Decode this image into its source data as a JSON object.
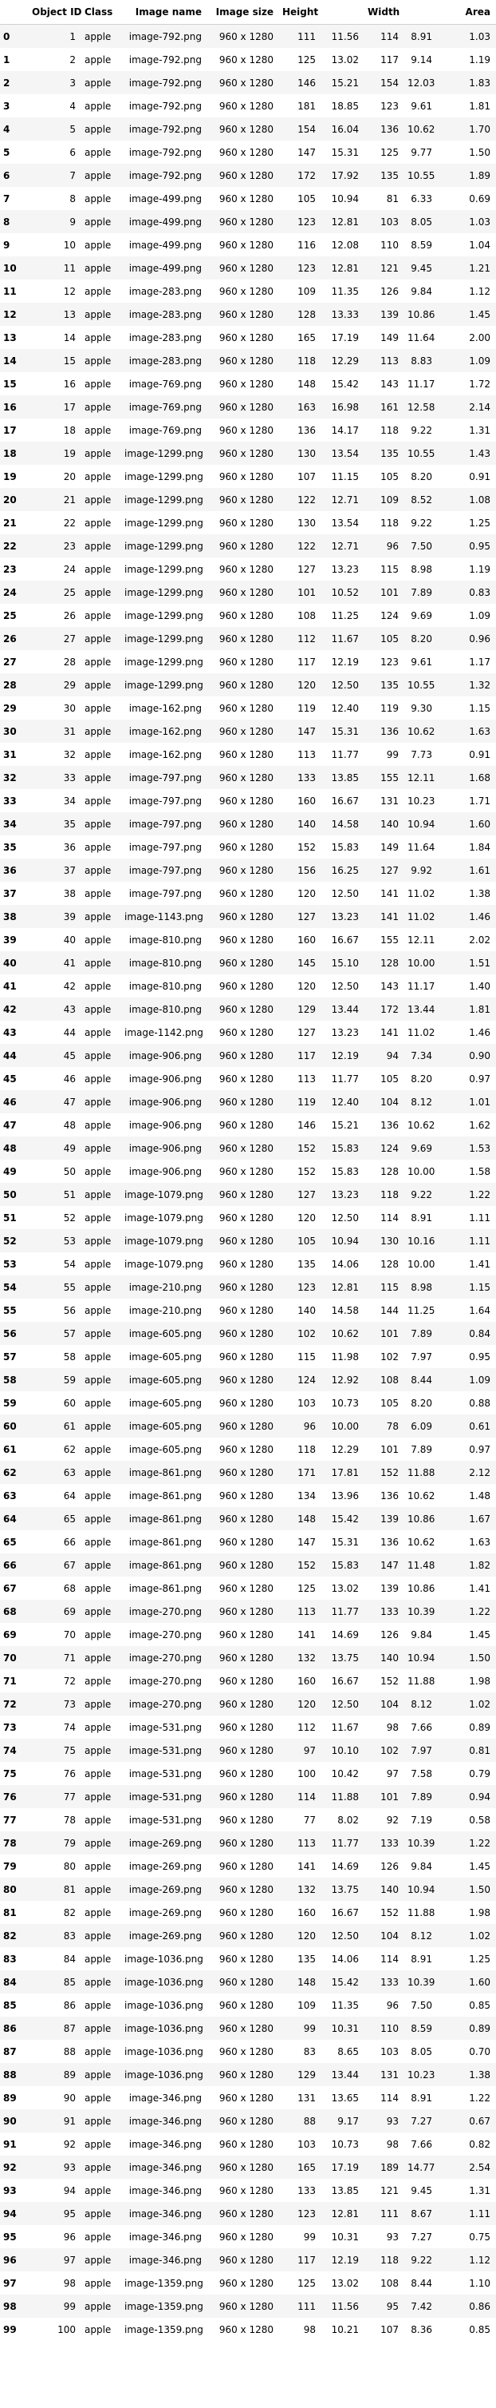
{
  "table": {
    "columns": [
      "",
      "Object ID",
      "Class",
      "Image name",
      "Image size",
      "Height",
      "Width",
      "Area"
    ],
    "rows": [
      [
        "0",
        "1",
        "apple",
        "image-792.png",
        "960 x 1280",
        "111",
        "11.56",
        "114",
        "8.91",
        "1.03"
      ],
      [
        "1",
        "2",
        "apple",
        "image-792.png",
        "960 x 1280",
        "125",
        "13.02",
        "117",
        "9.14",
        "1.19"
      ],
      [
        "2",
        "3",
        "apple",
        "image-792.png",
        "960 x 1280",
        "146",
        "15.21",
        "154",
        "12.03",
        "1.83"
      ],
      [
        "3",
        "4",
        "apple",
        "image-792.png",
        "960 x 1280",
        "181",
        "18.85",
        "123",
        "9.61",
        "1.81"
      ],
      [
        "4",
        "5",
        "apple",
        "image-792.png",
        "960 x 1280",
        "154",
        "16.04",
        "136",
        "10.62",
        "1.70"
      ],
      [
        "5",
        "6",
        "apple",
        "image-792.png",
        "960 x 1280",
        "147",
        "15.31",
        "125",
        "9.77",
        "1.50"
      ],
      [
        "6",
        "7",
        "apple",
        "image-792.png",
        "960 x 1280",
        "172",
        "17.92",
        "135",
        "10.55",
        "1.89"
      ],
      [
        "7",
        "8",
        "apple",
        "image-499.png",
        "960 x 1280",
        "105",
        "10.94",
        "81",
        "6.33",
        "0.69"
      ],
      [
        "8",
        "9",
        "apple",
        "image-499.png",
        "960 x 1280",
        "123",
        "12.81",
        "103",
        "8.05",
        "1.03"
      ],
      [
        "9",
        "10",
        "apple",
        "image-499.png",
        "960 x 1280",
        "116",
        "12.08",
        "110",
        "8.59",
        "1.04"
      ],
      [
        "10",
        "11",
        "apple",
        "image-499.png",
        "960 x 1280",
        "123",
        "12.81",
        "121",
        "9.45",
        "1.21"
      ],
      [
        "11",
        "12",
        "apple",
        "image-283.png",
        "960 x 1280",
        "109",
        "11.35",
        "126",
        "9.84",
        "1.12"
      ],
      [
        "12",
        "13",
        "apple",
        "image-283.png",
        "960 x 1280",
        "128",
        "13.33",
        "139",
        "10.86",
        "1.45"
      ],
      [
        "13",
        "14",
        "apple",
        "image-283.png",
        "960 x 1280",
        "165",
        "17.19",
        "149",
        "11.64",
        "2.00"
      ],
      [
        "14",
        "15",
        "apple",
        "image-283.png",
        "960 x 1280",
        "118",
        "12.29",
        "113",
        "8.83",
        "1.09"
      ],
      [
        "15",
        "16",
        "apple",
        "image-769.png",
        "960 x 1280",
        "148",
        "15.42",
        "143",
        "11.17",
        "1.72"
      ],
      [
        "16",
        "17",
        "apple",
        "image-769.png",
        "960 x 1280",
        "163",
        "16.98",
        "161",
        "12.58",
        "2.14"
      ],
      [
        "17",
        "18",
        "apple",
        "image-769.png",
        "960 x 1280",
        "136",
        "14.17",
        "118",
        "9.22",
        "1.31"
      ],
      [
        "18",
        "19",
        "apple",
        "image-1299.png",
        "960 x 1280",
        "130",
        "13.54",
        "135",
        "10.55",
        "1.43"
      ],
      [
        "19",
        "20",
        "apple",
        "image-1299.png",
        "960 x 1280",
        "107",
        "11.15",
        "105",
        "8.20",
        "0.91"
      ],
      [
        "20",
        "21",
        "apple",
        "image-1299.png",
        "960 x 1280",
        "122",
        "12.71",
        "109",
        "8.52",
        "1.08"
      ],
      [
        "21",
        "22",
        "apple",
        "image-1299.png",
        "960 x 1280",
        "130",
        "13.54",
        "118",
        "9.22",
        "1.25"
      ],
      [
        "22",
        "23",
        "apple",
        "image-1299.png",
        "960 x 1280",
        "122",
        "12.71",
        "96",
        "7.50",
        "0.95"
      ],
      [
        "23",
        "24",
        "apple",
        "image-1299.png",
        "960 x 1280",
        "127",
        "13.23",
        "115",
        "8.98",
        "1.19"
      ],
      [
        "24",
        "25",
        "apple",
        "image-1299.png",
        "960 x 1280",
        "101",
        "10.52",
        "101",
        "7.89",
        "0.83"
      ],
      [
        "25",
        "26",
        "apple",
        "image-1299.png",
        "960 x 1280",
        "108",
        "11.25",
        "124",
        "9.69",
        "1.09"
      ],
      [
        "26",
        "27",
        "apple",
        "image-1299.png",
        "960 x 1280",
        "112",
        "11.67",
        "105",
        "8.20",
        "0.96"
      ],
      [
        "27",
        "28",
        "apple",
        "image-1299.png",
        "960 x 1280",
        "117",
        "12.19",
        "123",
        "9.61",
        "1.17"
      ],
      [
        "28",
        "29",
        "apple",
        "image-1299.png",
        "960 x 1280",
        "120",
        "12.50",
        "135",
        "10.55",
        "1.32"
      ],
      [
        "29",
        "30",
        "apple",
        "image-162.png",
        "960 x 1280",
        "119",
        "12.40",
        "119",
        "9.30",
        "1.15"
      ],
      [
        "30",
        "31",
        "apple",
        "image-162.png",
        "960 x 1280",
        "147",
        "15.31",
        "136",
        "10.62",
        "1.63"
      ],
      [
        "31",
        "32",
        "apple",
        "image-162.png",
        "960 x 1280",
        "113",
        "11.77",
        "99",
        "7.73",
        "0.91"
      ],
      [
        "32",
        "33",
        "apple",
        "image-797.png",
        "960 x 1280",
        "133",
        "13.85",
        "155",
        "12.11",
        "1.68"
      ],
      [
        "33",
        "34",
        "apple",
        "image-797.png",
        "960 x 1280",
        "160",
        "16.67",
        "131",
        "10.23",
        "1.71"
      ],
      [
        "34",
        "35",
        "apple",
        "image-797.png",
        "960 x 1280",
        "140",
        "14.58",
        "140",
        "10.94",
        "1.60"
      ],
      [
        "35",
        "36",
        "apple",
        "image-797.png",
        "960 x 1280",
        "152",
        "15.83",
        "149",
        "11.64",
        "1.84"
      ],
      [
        "36",
        "37",
        "apple",
        "image-797.png",
        "960 x 1280",
        "156",
        "16.25",
        "127",
        "9.92",
        "1.61"
      ],
      [
        "37",
        "38",
        "apple",
        "image-797.png",
        "960 x 1280",
        "120",
        "12.50",
        "141",
        "11.02",
        "1.38"
      ],
      [
        "38",
        "39",
        "apple",
        "image-1143.png",
        "960 x 1280",
        "127",
        "13.23",
        "141",
        "11.02",
        "1.46"
      ],
      [
        "39",
        "40",
        "apple",
        "image-810.png",
        "960 x 1280",
        "160",
        "16.67",
        "155",
        "12.11",
        "2.02"
      ],
      [
        "40",
        "41",
        "apple",
        "image-810.png",
        "960 x 1280",
        "145",
        "15.10",
        "128",
        "10.00",
        "1.51"
      ],
      [
        "41",
        "42",
        "apple",
        "image-810.png",
        "960 x 1280",
        "120",
        "12.50",
        "143",
        "11.17",
        "1.40"
      ],
      [
        "42",
        "43",
        "apple",
        "image-810.png",
        "960 x 1280",
        "129",
        "13.44",
        "172",
        "13.44",
        "1.81"
      ],
      [
        "43",
        "44",
        "apple",
        "image-1142.png",
        "960 x 1280",
        "127",
        "13.23",
        "141",
        "11.02",
        "1.46"
      ],
      [
        "44",
        "45",
        "apple",
        "image-906.png",
        "960 x 1280",
        "117",
        "12.19",
        "94",
        "7.34",
        "0.90"
      ],
      [
        "45",
        "46",
        "apple",
        "image-906.png",
        "960 x 1280",
        "113",
        "11.77",
        "105",
        "8.20",
        "0.97"
      ],
      [
        "46",
        "47",
        "apple",
        "image-906.png",
        "960 x 1280",
        "119",
        "12.40",
        "104",
        "8.12",
        "1.01"
      ],
      [
        "47",
        "48",
        "apple",
        "image-906.png",
        "960 x 1280",
        "146",
        "15.21",
        "136",
        "10.62",
        "1.62"
      ],
      [
        "48",
        "49",
        "apple",
        "image-906.png",
        "960 x 1280",
        "152",
        "15.83",
        "124",
        "9.69",
        "1.53"
      ],
      [
        "49",
        "50",
        "apple",
        "image-906.png",
        "960 x 1280",
        "152",
        "15.83",
        "128",
        "10.00",
        "1.58"
      ],
      [
        "50",
        "51",
        "apple",
        "image-1079.png",
        "960 x 1280",
        "127",
        "13.23",
        "118",
        "9.22",
        "1.22"
      ],
      [
        "51",
        "52",
        "apple",
        "image-1079.png",
        "960 x 1280",
        "120",
        "12.50",
        "114",
        "8.91",
        "1.11"
      ],
      [
        "52",
        "53",
        "apple",
        "image-1079.png",
        "960 x 1280",
        "105",
        "10.94",
        "130",
        "10.16",
        "1.11"
      ],
      [
        "53",
        "54",
        "apple",
        "image-1079.png",
        "960 x 1280",
        "135",
        "14.06",
        "128",
        "10.00",
        "1.41"
      ],
      [
        "54",
        "55",
        "apple",
        "image-210.png",
        "960 x 1280",
        "123",
        "12.81",
        "115",
        "8.98",
        "1.15"
      ],
      [
        "55",
        "56",
        "apple",
        "image-210.png",
        "960 x 1280",
        "140",
        "14.58",
        "144",
        "11.25",
        "1.64"
      ],
      [
        "56",
        "57",
        "apple",
        "image-605.png",
        "960 x 1280",
        "102",
        "10.62",
        "101",
        "7.89",
        "0.84"
      ],
      [
        "57",
        "58",
        "apple",
        "image-605.png",
        "960 x 1280",
        "115",
        "11.98",
        "102",
        "7.97",
        "0.95"
      ],
      [
        "58",
        "59",
        "apple",
        "image-605.png",
        "960 x 1280",
        "124",
        "12.92",
        "108",
        "8.44",
        "1.09"
      ],
      [
        "59",
        "60",
        "apple",
        "image-605.png",
        "960 x 1280",
        "103",
        "10.73",
        "105",
        "8.20",
        "0.88"
      ],
      [
        "60",
        "61",
        "apple",
        "image-605.png",
        "960 x 1280",
        "96",
        "10.00",
        "78",
        "6.09",
        "0.61"
      ],
      [
        "61",
        "62",
        "apple",
        "image-605.png",
        "960 x 1280",
        "118",
        "12.29",
        "101",
        "7.89",
        "0.97"
      ],
      [
        "62",
        "63",
        "apple",
        "image-861.png",
        "960 x 1280",
        "171",
        "17.81",
        "152",
        "11.88",
        "2.12"
      ],
      [
        "63",
        "64",
        "apple",
        "image-861.png",
        "960 x 1280",
        "134",
        "13.96",
        "136",
        "10.62",
        "1.48"
      ],
      [
        "64",
        "65",
        "apple",
        "image-861.png",
        "960 x 1280",
        "148",
        "15.42",
        "139",
        "10.86",
        "1.67"
      ],
      [
        "65",
        "66",
        "apple",
        "image-861.png",
        "960 x 1280",
        "147",
        "15.31",
        "136",
        "10.62",
        "1.63"
      ],
      [
        "66",
        "67",
        "apple",
        "image-861.png",
        "960 x 1280",
        "152",
        "15.83",
        "147",
        "11.48",
        "1.82"
      ],
      [
        "67",
        "68",
        "apple",
        "image-861.png",
        "960 x 1280",
        "125",
        "13.02",
        "139",
        "10.86",
        "1.41"
      ],
      [
        "68",
        "69",
        "apple",
        "image-270.png",
        "960 x 1280",
        "113",
        "11.77",
        "133",
        "10.39",
        "1.22"
      ],
      [
        "69",
        "70",
        "apple",
        "image-270.png",
        "960 x 1280",
        "141",
        "14.69",
        "126",
        "9.84",
        "1.45"
      ],
      [
        "70",
        "71",
        "apple",
        "image-270.png",
        "960 x 1280",
        "132",
        "13.75",
        "140",
        "10.94",
        "1.50"
      ],
      [
        "71",
        "72",
        "apple",
        "image-270.png",
        "960 x 1280",
        "160",
        "16.67",
        "152",
        "11.88",
        "1.98"
      ],
      [
        "72",
        "73",
        "apple",
        "image-270.png",
        "960 x 1280",
        "120",
        "12.50",
        "104",
        "8.12",
        "1.02"
      ],
      [
        "73",
        "74",
        "apple",
        "image-531.png",
        "960 x 1280",
        "112",
        "11.67",
        "98",
        "7.66",
        "0.89"
      ],
      [
        "74",
        "75",
        "apple",
        "image-531.png",
        "960 x 1280",
        "97",
        "10.10",
        "102",
        "7.97",
        "0.81"
      ],
      [
        "75",
        "76",
        "apple",
        "image-531.png",
        "960 x 1280",
        "100",
        "10.42",
        "97",
        "7.58",
        "0.79"
      ],
      [
        "76",
        "77",
        "apple",
        "image-531.png",
        "960 x 1280",
        "114",
        "11.88",
        "101",
        "7.89",
        "0.94"
      ],
      [
        "77",
        "78",
        "apple",
        "image-531.png",
        "960 x 1280",
        "77",
        "8.02",
        "92",
        "7.19",
        "0.58"
      ],
      [
        "78",
        "79",
        "apple",
        "image-269.png",
        "960 x 1280",
        "113",
        "11.77",
        "133",
        "10.39",
        "1.22"
      ],
      [
        "79",
        "80",
        "apple",
        "image-269.png",
        "960 x 1280",
        "141",
        "14.69",
        "126",
        "9.84",
        "1.45"
      ],
      [
        "80",
        "81",
        "apple",
        "image-269.png",
        "960 x 1280",
        "132",
        "13.75",
        "140",
        "10.94",
        "1.50"
      ],
      [
        "81",
        "82",
        "apple",
        "image-269.png",
        "960 x 1280",
        "160",
        "16.67",
        "152",
        "11.88",
        "1.98"
      ],
      [
        "82",
        "83",
        "apple",
        "image-269.png",
        "960 x 1280",
        "120",
        "12.50",
        "104",
        "8.12",
        "1.02"
      ],
      [
        "83",
        "84",
        "apple",
        "image-1036.png",
        "960 x 1280",
        "135",
        "14.06",
        "114",
        "8.91",
        "1.25"
      ],
      [
        "84",
        "85",
        "apple",
        "image-1036.png",
        "960 x 1280",
        "148",
        "15.42",
        "133",
        "10.39",
        "1.60"
      ],
      [
        "85",
        "86",
        "apple",
        "image-1036.png",
        "960 x 1280",
        "109",
        "11.35",
        "96",
        "7.50",
        "0.85"
      ],
      [
        "86",
        "87",
        "apple",
        "image-1036.png",
        "960 x 1280",
        "99",
        "10.31",
        "110",
        "8.59",
        "0.89"
      ],
      [
        "87",
        "88",
        "apple",
        "image-1036.png",
        "960 x 1280",
        "83",
        "8.65",
        "103",
        "8.05",
        "0.70"
      ],
      [
        "88",
        "89",
        "apple",
        "image-1036.png",
        "960 x 1280",
        "129",
        "13.44",
        "131",
        "10.23",
        "1.38"
      ],
      [
        "89",
        "90",
        "apple",
        "image-346.png",
        "960 x 1280",
        "131",
        "13.65",
        "114",
        "8.91",
        "1.22"
      ],
      [
        "90",
        "91",
        "apple",
        "image-346.png",
        "960 x 1280",
        "88",
        "9.17",
        "93",
        "7.27",
        "0.67"
      ],
      [
        "91",
        "92",
        "apple",
        "image-346.png",
        "960 x 1280",
        "103",
        "10.73",
        "98",
        "7.66",
        "0.82"
      ],
      [
        "92",
        "93",
        "apple",
        "image-346.png",
        "960 x 1280",
        "165",
        "17.19",
        "189",
        "14.77",
        "2.54"
      ],
      [
        "93",
        "94",
        "apple",
        "image-346.png",
        "960 x 1280",
        "133",
        "13.85",
        "121",
        "9.45",
        "1.31"
      ],
      [
        "94",
        "95",
        "apple",
        "image-346.png",
        "960 x 1280",
        "123",
        "12.81",
        "111",
        "8.67",
        "1.11"
      ],
      [
        "95",
        "96",
        "apple",
        "image-346.png",
        "960 x 1280",
        "99",
        "10.31",
        "93",
        "7.27",
        "0.75"
      ],
      [
        "96",
        "97",
        "apple",
        "image-346.png",
        "960 x 1280",
        "117",
        "12.19",
        "118",
        "9.22",
        "1.12"
      ],
      [
        "97",
        "98",
        "apple",
        "image-1359.png",
        "960 x 1280",
        "125",
        "13.02",
        "108",
        "8.44",
        "1.10"
      ],
      [
        "98",
        "99",
        "apple",
        "image-1359.png",
        "960 x 1280",
        "111",
        "11.56",
        "95",
        "7.42",
        "0.86"
      ],
      [
        "99",
        "100",
        "apple",
        "image-1359.png",
        "960 x 1280",
        "98",
        "10.21",
        "107",
        "8.36",
        "0.85"
      ]
    ]
  }
}
